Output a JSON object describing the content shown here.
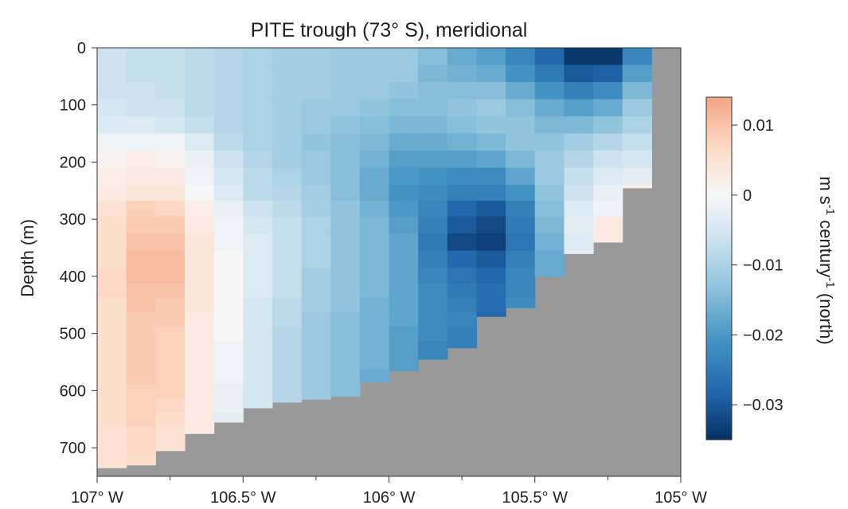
{
  "chart_data": {
    "type": "heatmap",
    "title": "PITE trough (73° S), meridional",
    "ylabel": "Depth (m)",
    "colorbar_label": [
      "m s",
      "-1",
      " century",
      "-1",
      " (north)"
    ],
    "colormap": "RdBu_r (diverging: red = positive/north, blue = negative/south)",
    "colorbar_range": [
      -0.035,
      0.014
    ],
    "colorbar_ticks": [
      0.01,
      0,
      -0.01,
      -0.02,
      -0.03
    ],
    "colorbar_tick_labels": [
      "0.01",
      "0",
      "−0.01",
      "−0.02",
      "−0.03"
    ],
    "xlim": [
      -107.0,
      -105.0
    ],
    "ylim": [
      750,
      0
    ],
    "x_ticks": [
      -107.0,
      -106.5,
      -106.0,
      -105.5,
      -105.0
    ],
    "x_tick_labels": [
      "107° W",
      "106.5° W",
      "106° W",
      "105.5° W",
      "105° W"
    ],
    "y_ticks": [
      0,
      100,
      200,
      300,
      400,
      500,
      600,
      700
    ],
    "y_tick_labels": [
      "0",
      "100",
      "200",
      "300",
      "400",
      "500",
      "600",
      "700"
    ],
    "land_color": "#999999",
    "grid_x_edges": [
      -107.0,
      -106.9,
      -106.8,
      -106.7,
      -106.6,
      -106.5,
      -106.4,
      -106.3,
      -106.2,
      -106.1,
      -106.0,
      -105.9,
      -105.8,
      -105.7,
      -105.6,
      -105.5,
      -105.4,
      -105.3,
      -105.2
    ],
    "grid_depths": [
      15,
      45,
      75,
      105,
      135,
      165,
      195,
      225,
      255,
      280,
      310,
      340,
      370,
      400,
      425,
      450,
      475,
      500,
      525,
      550,
      575,
      600,
      625,
      650,
      675,
      700,
      725
    ],
    "bottom_depth": [
      735,
      730,
      705,
      675,
      655,
      630,
      620,
      615,
      610,
      585,
      565,
      545,
      525,
      470,
      455,
      400,
      360,
      340,
      245
    ],
    "columns": [
      [
        -0.006,
        -0.006,
        -0.006,
        -0.005,
        -0.004,
        -0.001,
        0.001,
        0.002,
        0.003,
        0.005,
        0.006,
        0.006,
        0.006,
        0.007,
        0.007,
        0.006,
        0.006,
        0.006,
        0.006,
        0.006,
        0.006,
        0.006,
        0.006,
        0.006,
        0.005,
        0.005,
        0.005
      ],
      [
        -0.007,
        -0.007,
        -0.006,
        -0.006,
        -0.004,
        -0.001,
        0.002,
        0.003,
        0.004,
        0.008,
        0.009,
        0.01,
        0.011,
        0.011,
        0.01,
        0.01,
        0.009,
        0.009,
        0.009,
        0.009,
        0.009,
        0.008,
        0.008,
        0.008,
        0.007,
        0.007,
        0.006
      ],
      [
        -0.007,
        -0.007,
        -0.007,
        -0.006,
        -0.005,
        -0.001,
        0.001,
        0.003,
        0.004,
        0.007,
        0.009,
        0.01,
        0.011,
        0.011,
        0.01,
        0.009,
        0.009,
        0.008,
        0.008,
        0.008,
        0.008,
        0.008,
        0.007,
        0.006,
        0.005,
        0.005,
        0.004
      ],
      [
        -0.008,
        -0.008,
        -0.008,
        -0.008,
        -0.007,
        -0.004,
        -0.002,
        -0.001,
        0.0,
        0.002,
        0.003,
        0.004,
        0.004,
        0.004,
        0.004,
        0.004,
        0.003,
        0.003,
        0.003,
        0.003,
        0.003,
        0.003,
        0.003,
        0.003,
        0.003,
        0.003,
        0.003
      ],
      [
        -0.009,
        -0.009,
        -0.009,
        -0.009,
        -0.009,
        -0.008,
        -0.006,
        -0.005,
        -0.004,
        -0.002,
        -0.001,
        -0.001,
        0.0,
        0.0,
        0.0,
        0.0,
        0.0,
        0.0,
        -0.001,
        -0.001,
        -0.001,
        -0.002,
        -0.002,
        -0.003,
        -0.003,
        -0.003,
        -0.003
      ],
      [
        -0.01,
        -0.01,
        -0.01,
        -0.01,
        -0.01,
        -0.01,
        -0.009,
        -0.008,
        -0.008,
        -0.006,
        -0.005,
        -0.004,
        -0.004,
        -0.004,
        -0.004,
        -0.005,
        -0.005,
        -0.005,
        -0.005,
        -0.005,
        -0.005,
        -0.005,
        -0.005,
        -0.005,
        -0.005,
        -0.005,
        -0.005
      ],
      [
        -0.011,
        -0.011,
        -0.011,
        -0.011,
        -0.011,
        -0.011,
        -0.011,
        -0.01,
        -0.009,
        -0.008,
        -0.007,
        -0.007,
        -0.007,
        -0.007,
        -0.007,
        -0.008,
        -0.008,
        -0.009,
        -0.009,
        -0.009,
        -0.009,
        -0.009,
        -0.009,
        -0.009,
        -0.009,
        -0.009,
        -0.009
      ],
      [
        -0.011,
        -0.011,
        -0.011,
        -0.012,
        -0.012,
        -0.013,
        -0.012,
        -0.012,
        -0.011,
        -0.011,
        -0.01,
        -0.01,
        -0.01,
        -0.011,
        -0.011,
        -0.011,
        -0.012,
        -0.012,
        -0.012,
        -0.012,
        -0.012,
        -0.012,
        -0.012,
        -0.012,
        -0.012,
        -0.012,
        -0.012
      ],
      [
        -0.012,
        -0.012,
        -0.012,
        -0.012,
        -0.013,
        -0.014,
        -0.014,
        -0.014,
        -0.014,
        -0.013,
        -0.013,
        -0.013,
        -0.013,
        -0.013,
        -0.013,
        -0.013,
        -0.014,
        -0.014,
        -0.014,
        -0.014,
        -0.014,
        -0.014,
        -0.015,
        -0.015,
        -0.015,
        -0.015,
        -0.015
      ],
      [
        -0.012,
        -0.012,
        -0.012,
        -0.013,
        -0.014,
        -0.015,
        -0.016,
        -0.017,
        -0.017,
        -0.016,
        -0.015,
        -0.015,
        -0.015,
        -0.015,
        -0.015,
        -0.016,
        -0.016,
        -0.016,
        -0.016,
        -0.016,
        -0.017,
        -0.018,
        -0.018,
        -0.018,
        -0.018,
        -0.018,
        -0.018
      ],
      [
        -0.012,
        -0.012,
        -0.013,
        -0.014,
        -0.015,
        -0.017,
        -0.019,
        -0.02,
        -0.021,
        -0.02,
        -0.019,
        -0.018,
        -0.018,
        -0.018,
        -0.018,
        -0.018,
        -0.018,
        -0.019,
        -0.019,
        -0.019,
        -0.019,
        -0.019,
        -0.019,
        -0.019,
        -0.019,
        -0.019,
        -0.019
      ],
      [
        -0.014,
        -0.015,
        -0.014,
        -0.014,
        -0.015,
        -0.017,
        -0.019,
        -0.021,
        -0.022,
        -0.023,
        -0.024,
        -0.025,
        -0.024,
        -0.023,
        -0.022,
        -0.022,
        -0.022,
        -0.022,
        -0.023,
        -0.023,
        -0.024,
        -0.024,
        -0.024,
        -0.024,
        -0.024,
        -0.024,
        -0.024
      ],
      [
        -0.017,
        -0.016,
        -0.014,
        -0.013,
        -0.014,
        -0.016,
        -0.019,
        -0.022,
        -0.024,
        -0.028,
        -0.03,
        -0.032,
        -0.028,
        -0.026,
        -0.025,
        -0.024,
        -0.023,
        -0.024,
        -0.024,
        -0.024,
        -0.024,
        -0.024,
        -0.024,
        -0.024,
        -0.024,
        -0.024,
        -0.024
      ],
      [
        -0.019,
        -0.017,
        -0.014,
        -0.012,
        -0.013,
        -0.015,
        -0.018,
        -0.022,
        -0.024,
        -0.03,
        -0.032,
        -0.033,
        -0.03,
        -0.028,
        -0.027,
        -0.027,
        -0.028,
        -0.029,
        -0.03,
        -0.03,
        -0.03,
        -0.03,
        -0.03,
        -0.03,
        -0.03,
        -0.03,
        -0.03
      ],
      [
        -0.023,
        -0.021,
        -0.017,
        -0.014,
        -0.013,
        -0.013,
        -0.015,
        -0.018,
        -0.021,
        -0.024,
        -0.025,
        -0.026,
        -0.024,
        -0.023,
        -0.023,
        -0.022,
        -0.022,
        -0.022,
        -0.022,
        -0.022,
        -0.022,
        -0.022,
        -0.022,
        -0.022,
        -0.022,
        -0.022,
        -0.022
      ],
      [
        -0.028,
        -0.025,
        -0.021,
        -0.017,
        -0.015,
        -0.013,
        -0.012,
        -0.012,
        -0.013,
        -0.014,
        -0.015,
        -0.016,
        -0.017,
        -0.017,
        -0.018,
        -0.018,
        -0.018,
        -0.018,
        -0.018,
        -0.018,
        -0.018,
        -0.018,
        -0.018,
        -0.018,
        -0.018,
        -0.018,
        -0.018
      ],
      [
        -0.034,
        -0.03,
        -0.024,
        -0.019,
        -0.015,
        -0.011,
        -0.009,
        -0.007,
        -0.006,
        -0.004,
        -0.003,
        -0.004,
        -0.003,
        -0.003,
        -0.003,
        -0.003,
        -0.003,
        -0.003,
        -0.003,
        -0.003,
        -0.003,
        -0.003,
        -0.003,
        -0.003,
        -0.003,
        -0.003,
        -0.003
      ],
      [
        -0.034,
        -0.029,
        -0.022,
        -0.017,
        -0.013,
        -0.009,
        -0.006,
        -0.004,
        -0.002,
        -0.001,
        0.003,
        0.003,
        0.003,
        0.003,
        0.003,
        0.003,
        0.003,
        0.003,
        0.003,
        0.003,
        0.003,
        0.003,
        0.003,
        0.003,
        0.003,
        0.003,
        0.003
      ],
      [
        -0.023,
        -0.019,
        -0.015,
        -0.012,
        -0.01,
        -0.007,
        -0.005,
        -0.003,
        0.002,
        0.002,
        0.002,
        0.002,
        0.002,
        0.002,
        0.002,
        0.002,
        0.002,
        0.002,
        0.002,
        0.002,
        0.002,
        0.002,
        0.002,
        0.002,
        0.002,
        0.002,
        0.002
      ]
    ]
  }
}
